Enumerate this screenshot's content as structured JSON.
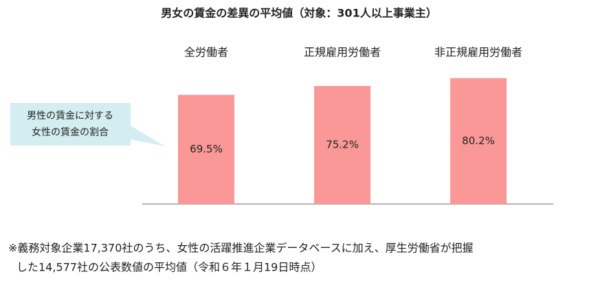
{
  "chart_data": {
    "type": "bar",
    "title": "男女の賃金の差異の平均値（対象：301人以上事業主）",
    "categories": [
      "全労働者",
      "正規雇用労働者",
      "非正規雇用労働者"
    ],
    "values": [
      69.5,
      75.2,
      80.2
    ],
    "value_labels": [
      "69.5%",
      "75.2%",
      "80.2%"
    ],
    "color": "#fa9898",
    "annotation": [
      "男性の賃金に対する",
      "女性の賃金の割合"
    ],
    "notes": [
      "※義務対象企業17,370社のうち、女性の活躍推進企業データベースに加え、厚生労働省が把握",
      "した14,577社の公表数値の平均値（令和６年１月19日時点）"
    ]
  }
}
